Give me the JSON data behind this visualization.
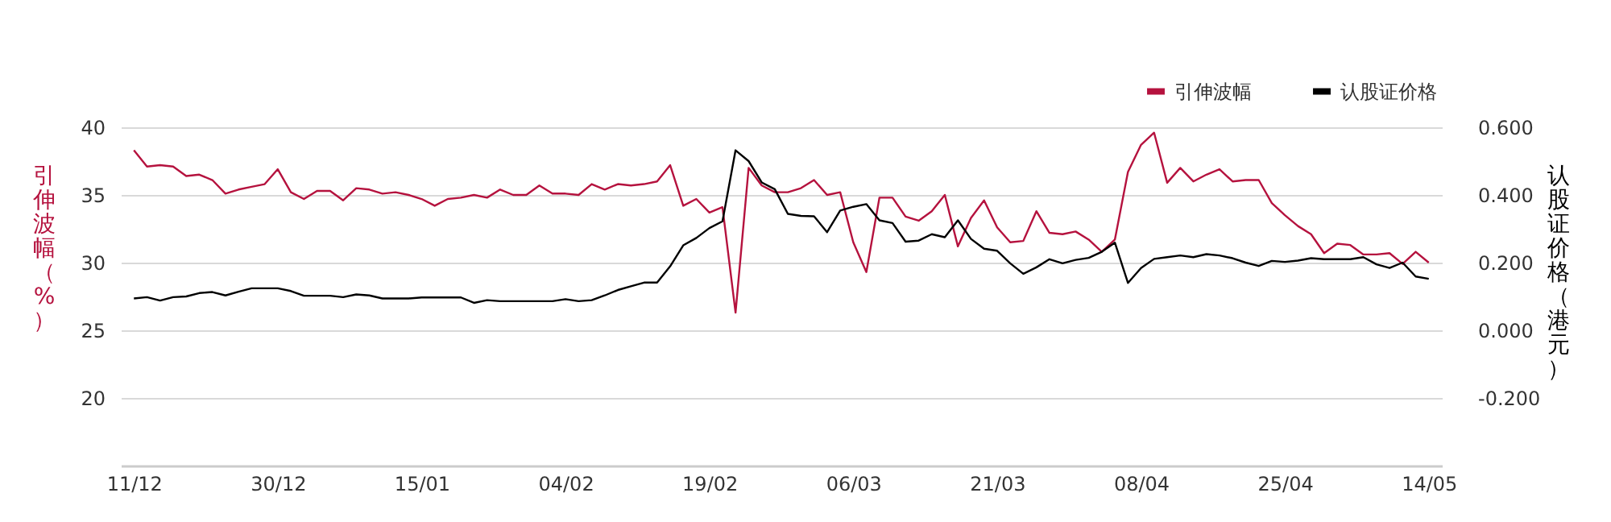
{
  "chart_data": {
    "type": "line",
    "ylabel": "引伸波幅（%）",
    "y2label": "认股证价格（港元）",
    "categories": [
      "11/12",
      null,
      null,
      null,
      null,
      null,
      null,
      null,
      null,
      null,
      null,
      "30/12",
      null,
      null,
      null,
      null,
      null,
      null,
      null,
      null,
      null,
      null,
      "15/01",
      null,
      null,
      null,
      null,
      null,
      null,
      null,
      null,
      null,
      null,
      "04/02",
      null,
      null,
      null,
      null,
      null,
      null,
      null,
      null,
      null,
      null,
      "19/02",
      null,
      null,
      null,
      null,
      null,
      null,
      null,
      null,
      null,
      null,
      "06/03",
      null,
      null,
      null,
      null,
      null,
      null,
      null,
      null,
      null,
      null,
      "21/03",
      null,
      null,
      null,
      null,
      null,
      null,
      null,
      null,
      null,
      null,
      "08/04",
      null,
      null,
      null,
      null,
      null,
      null,
      null,
      null,
      null,
      null,
      "25/04",
      null,
      null,
      null,
      null,
      null,
      null,
      null,
      null,
      null,
      null,
      "14/05"
    ],
    "series": [
      {
        "name": "引伸波幅",
        "color": "#b5123e",
        "values": [
          38.3,
          37.1,
          37.2,
          37.1,
          36.4,
          36.5,
          36.1,
          35.1,
          35.4,
          35.6,
          35.8,
          36.9,
          35.2,
          34.7,
          35.3,
          35.3,
          34.6,
          35.5,
          35.4,
          35.1,
          35.2,
          35.0,
          34.7,
          34.2,
          34.7,
          34.8,
          35.0,
          34.8,
          35.4,
          35.0,
          35.0,
          35.7,
          35.1,
          35.1,
          35.0,
          35.8,
          35.4,
          35.8,
          35.7,
          35.8,
          36.0,
          37.2,
          34.2,
          34.7,
          33.7,
          34.1,
          26.3,
          37.0,
          35.7,
          35.2,
          35.2,
          35.5,
          36.1,
          35.0,
          35.2,
          31.5,
          29.3,
          34.8,
          34.8,
          33.4,
          33.1,
          33.8,
          35.0,
          31.2,
          33.3,
          34.6,
          32.6,
          31.5,
          31.6,
          33.8,
          32.2,
          32.1,
          32.3,
          31.7,
          30.8,
          31.7,
          36.7,
          38.7,
          39.6,
          35.9,
          37.0,
          36.0,
          36.5,
          36.9,
          36.0,
          36.1,
          36.1,
          34.4,
          33.5,
          32.7,
          32.1,
          30.7,
          31.4,
          31.3,
          30.6,
          30.6,
          30.7,
          29.9,
          30.8,
          30.0
        ]
      },
      {
        "name": "认股证价格",
        "color": "#000000",
        "axis": "y2",
        "values": [
          0.094,
          0.098,
          0.088,
          0.098,
          0.1,
          0.11,
          0.113,
          0.103,
          0.114,
          0.124,
          0.124,
          0.124,
          0.116,
          0.102,
          0.102,
          0.102,
          0.098,
          0.106,
          0.103,
          0.094,
          0.094,
          0.094,
          0.097,
          0.097,
          0.097,
          0.097,
          0.081,
          0.089,
          0.086,
          0.086,
          0.086,
          0.086,
          0.086,
          0.092,
          0.086,
          0.089,
          0.103,
          0.119,
          0.13,
          0.141,
          0.141,
          0.189,
          0.251,
          0.273,
          0.302,
          0.322,
          0.532,
          0.5,
          0.437,
          0.417,
          0.344,
          0.338,
          0.337,
          0.29,
          0.354,
          0.365,
          0.373,
          0.325,
          0.317,
          0.262,
          0.265,
          0.284,
          0.275,
          0.325,
          0.27,
          0.241,
          0.235,
          0.198,
          0.167,
          0.186,
          0.21,
          0.198,
          0.208,
          0.214,
          0.232,
          0.259,
          0.14,
          0.184,
          0.211,
          0.216,
          0.221,
          0.216,
          0.225,
          0.221,
          0.213,
          0.2,
          0.19,
          0.205,
          0.202,
          0.206,
          0.213,
          0.21,
          0.21,
          0.21,
          0.216,
          0.195,
          0.184,
          0.2,
          0.159,
          0.152
        ]
      }
    ],
    "ylim": [
      15,
      40
    ],
    "yticks": [
      20,
      25,
      30,
      35,
      40
    ],
    "y2lim": [
      -0.4,
      0.6
    ],
    "y2ticks": [
      {
        "value": -0.2,
        "label": "-0.200"
      },
      {
        "value": 0,
        "label": "0.000"
      },
      {
        "value": 0.2,
        "label": "0.200"
      },
      {
        "value": 0.4,
        "label": "0.400"
      },
      {
        "value": 0.6,
        "label": "0.600"
      }
    ],
    "grid": "y",
    "legend": "top right",
    "line_style": "solid",
    "marker": "none"
  }
}
